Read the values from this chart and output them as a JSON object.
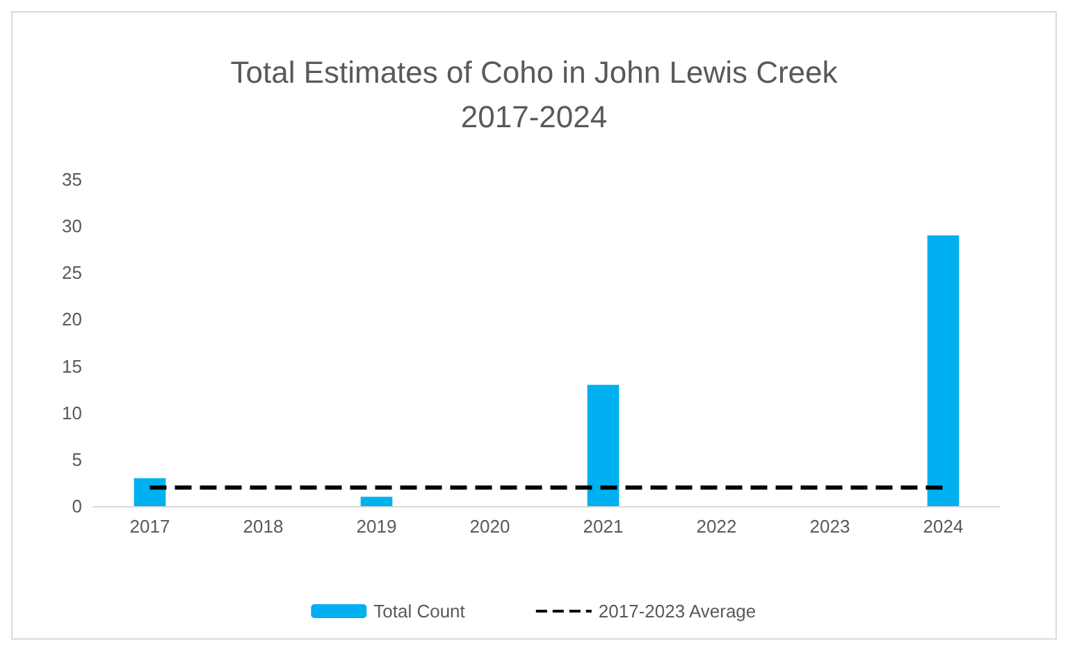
{
  "chart_data": {
    "type": "bar",
    "title": "Total Estimates of Coho in John Lewis Creek\n2017-2024",
    "categories": [
      "2017",
      "2018",
      "2019",
      "2020",
      "2021",
      "2022",
      "2023",
      "2024"
    ],
    "series": [
      {
        "name": "Total Count",
        "color": "#00b0f0",
        "values": [
          3,
          0,
          1,
          0,
          13,
          0,
          0,
          29
        ]
      },
      {
        "name": "2017-2023 Average",
        "type": "line",
        "color": "#000000",
        "values": [
          2,
          2,
          2,
          2,
          2,
          2,
          2,
          2
        ],
        "line_style": "dashed",
        "marker": "none"
      }
    ],
    "ylim": [
      0,
      35
    ],
    "yticks": [
      0,
      5,
      10,
      15,
      20,
      25,
      30,
      35
    ],
    "legend": "bottom"
  }
}
